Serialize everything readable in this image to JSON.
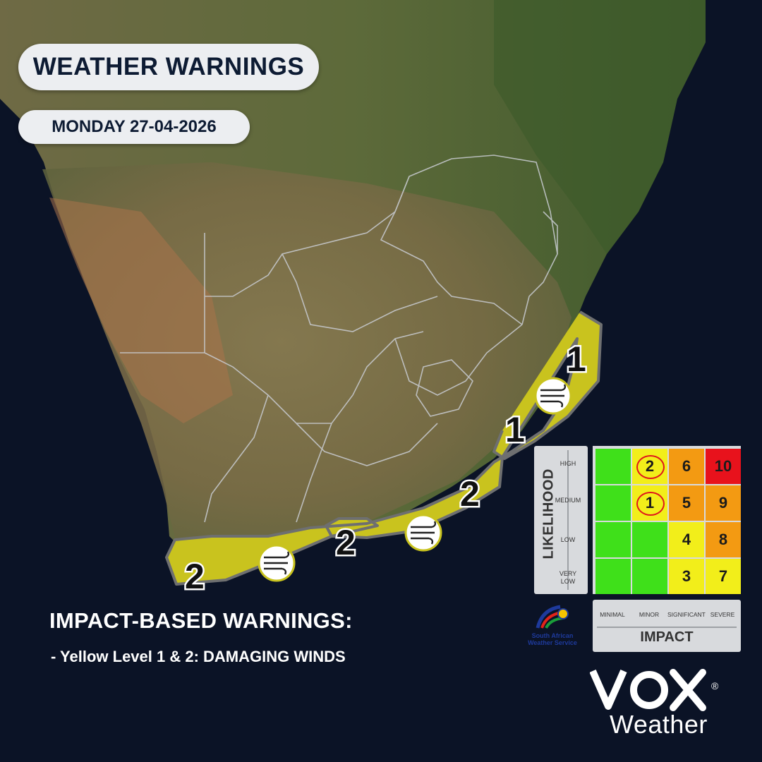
{
  "header": {
    "title": "WEATHER WARNINGS",
    "date": "MONDAY 27-04-2026"
  },
  "map": {
    "region": "Southern Africa",
    "warning_color": "#c9c31e",
    "ocean_color": "#0b1326",
    "warning_zones": [
      {
        "level": "1",
        "area": "KwaZulu-Natal north coast"
      },
      {
        "level": "1",
        "area": "KwaZulu-Natal south coast"
      },
      {
        "level": "2",
        "area": "Eastern Cape coast"
      },
      {
        "level": "2",
        "area": "Garden Route coast"
      },
      {
        "level": "2",
        "area": "Western Cape south coast"
      }
    ],
    "wind_icons": [
      "wind-icon",
      "wind-icon",
      "wind-icon"
    ]
  },
  "impact_warnings": {
    "heading": "IMPACT-BASED WARNINGS:",
    "items": [
      "- Yellow Level 1 & 2: DAMAGING WINDS"
    ]
  },
  "risk_matrix": {
    "likelihood_title": "LIKELIHOOD",
    "impact_title": "IMPACT",
    "likelihood_levels": [
      "HIGH",
      "MEDIUM",
      "LOW",
      "VERY LOW"
    ],
    "impact_levels": [
      "MINIMAL",
      "MINOR",
      "SIGNIFICANT",
      "SEVERE"
    ],
    "rows": [
      [
        {
          "v": "",
          "c": "#3fe01a"
        },
        {
          "v": "2",
          "c": "#f2ee1a",
          "circled": true
        },
        {
          "v": "6",
          "c": "#f39a12"
        },
        {
          "v": "10",
          "c": "#e8121c"
        }
      ],
      [
        {
          "v": "",
          "c": "#3fe01a"
        },
        {
          "v": "1",
          "c": "#f2ee1a",
          "circled": true
        },
        {
          "v": "5",
          "c": "#f39a12"
        },
        {
          "v": "9",
          "c": "#f39a12"
        }
      ],
      [
        {
          "v": "",
          "c": "#3fe01a"
        },
        {
          "v": "",
          "c": "#3fe01a"
        },
        {
          "v": "4",
          "c": "#f2ee1a"
        },
        {
          "v": "8",
          "c": "#f39a12"
        }
      ],
      [
        {
          "v": "",
          "c": "#3fe01a"
        },
        {
          "v": "",
          "c": "#3fe01a"
        },
        {
          "v": "3",
          "c": "#f2ee1a"
        },
        {
          "v": "7",
          "c": "#f2ee1a"
        }
      ]
    ]
  },
  "branding": {
    "saws_logo_text": "South African Weather Service",
    "vox_logo": "VOX",
    "vox_sub": "Weather",
    "registered": "®"
  }
}
